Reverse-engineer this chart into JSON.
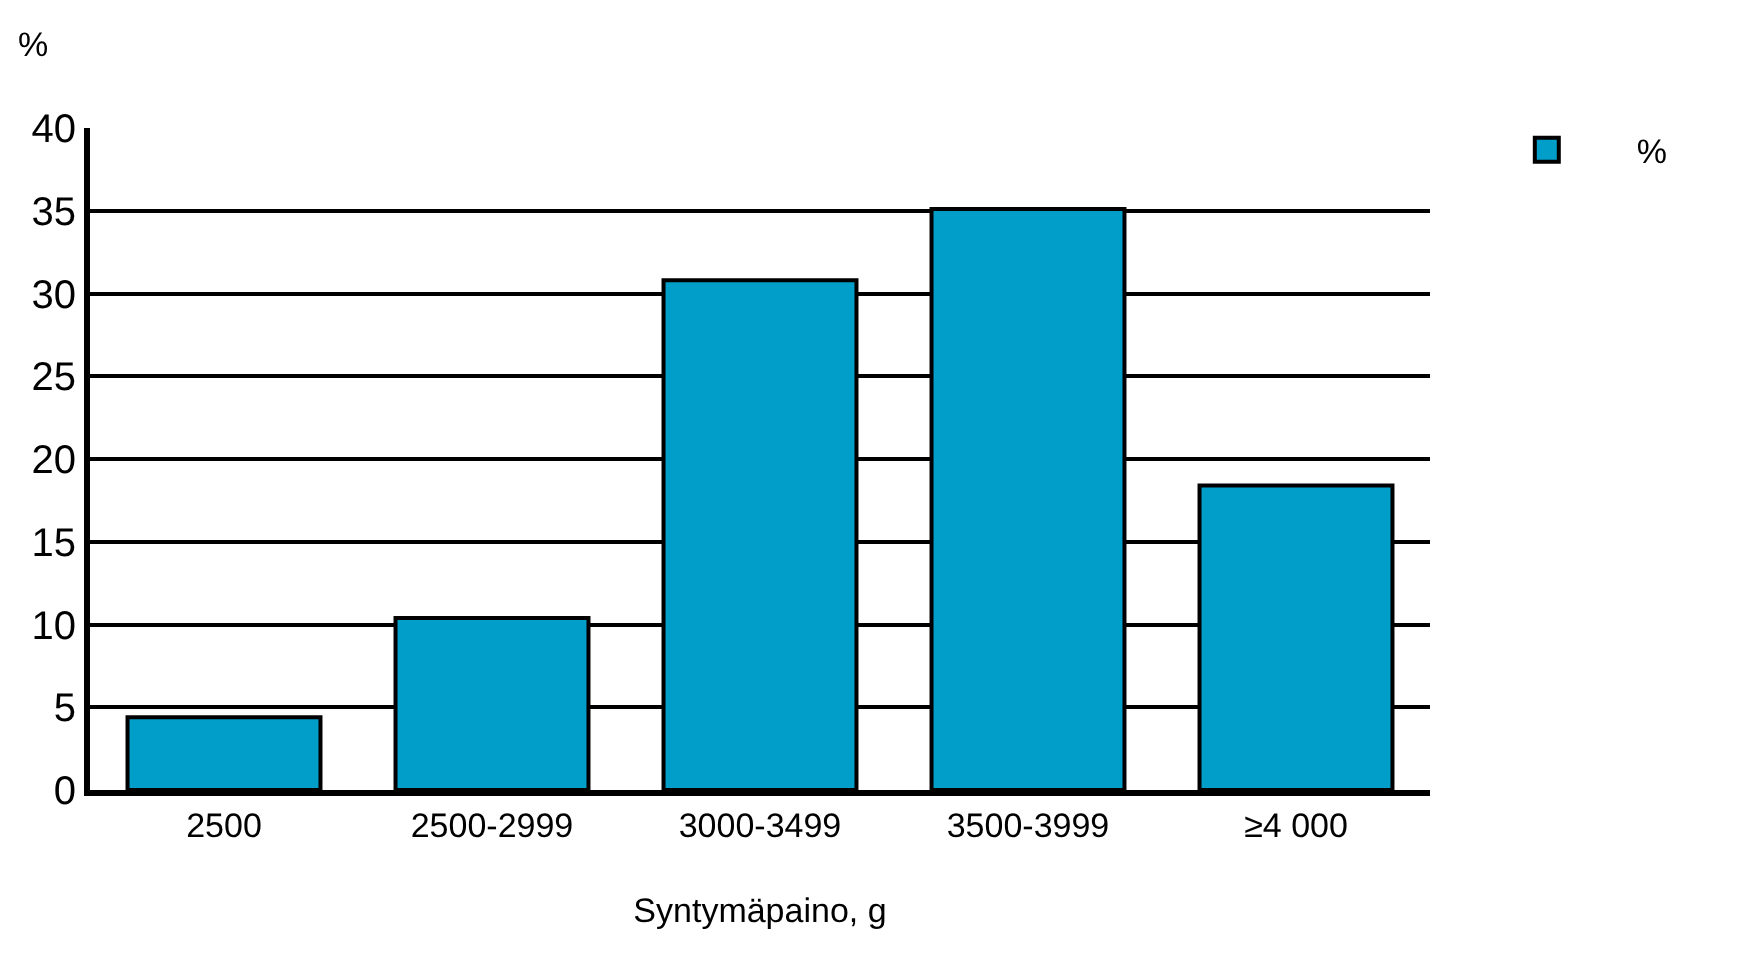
{
  "chart_data": {
    "type": "bar",
    "ylabel": "%",
    "xlabel": "Syntymäpaino, g",
    "categories": [
      "2500",
      "2500-2999",
      "3000-3499",
      "3500-3999",
      "≥4 000"
    ],
    "series": [
      {
        "name": "%",
        "color": "#009ec8",
        "values": [
          4.4,
          10.4,
          30.8,
          35.1,
          18.4
        ]
      }
    ],
    "ylim": [
      0,
      40
    ],
    "yticks": [
      0,
      5,
      10,
      15,
      20,
      25,
      30,
      35,
      40
    ],
    "grid": "y",
    "legend": "top right"
  }
}
